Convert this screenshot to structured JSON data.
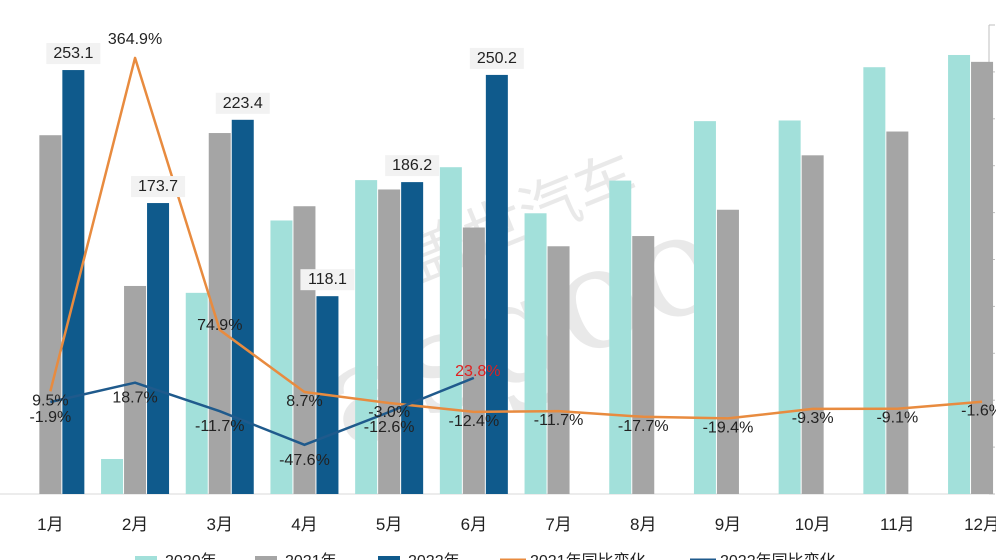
{
  "chart_data": {
    "type": "bar",
    "categories": [
      "1月",
      "2月",
      "3月",
      "4月",
      "5月",
      "6月",
      "7月",
      "8月",
      "9月",
      "10月",
      "11月",
      "12月"
    ],
    "series": [
      {
        "name": "2020年",
        "kind": "bar",
        "color": "#a2e0da",
        "values": [
          null,
          20.9,
          120.1,
          163.3,
          187.4,
          195.1,
          167.6,
          187.1,
          222.6,
          223.0,
          254.8,
          262.1
        ]
      },
      {
        "name": "2021年",
        "kind": "bar",
        "color": "#a5a5a5",
        "values": [
          214.2,
          124.2,
          215.5,
          171.8,
          181.8,
          159.1,
          147.9,
          154.0,
          169.7,
          202.2,
          216.4,
          258.0
        ]
      },
      {
        "name": "2022年",
        "kind": "bar",
        "color": "#0f5a8c",
        "values": [
          253.1,
          173.7,
          223.4,
          118.1,
          186.2,
          250.2,
          null,
          null,
          null,
          null,
          null,
          null
        ]
      },
      {
        "name": "2021年同比变化",
        "kind": "line",
        "color": "#e88b3f",
        "values": [
          9.5,
          364.9,
          74.9,
          8.7,
          -3.0,
          -12.4,
          -11.7,
          -17.7,
          -19.4,
          -9.3,
          -9.1,
          -1.6
        ],
        "labels": [
          "9.5%",
          "364.9%",
          "74.9%",
          "8.7%",
          "-3.0%",
          "-12.4%",
          "-11.7%",
          "-17.7%",
          "-19.4%",
          "-9.3%",
          "-9.1%",
          "-1.6%"
        ]
      },
      {
        "name": "2022年同比变化",
        "kind": "line",
        "color": "#1f5a8c",
        "values": [
          -1.9,
          18.7,
          -11.7,
          -47.6,
          -12.6,
          23.8,
          null,
          null,
          null,
          null,
          null,
          null
        ],
        "labels": [
          "-1.9%",
          "18.7%",
          "-11.7%",
          "-47.6%",
          "-12.6%",
          "23.8%",
          "",
          "",
          "",
          "",
          "",
          ""
        ]
      }
    ],
    "bar_value_labels": [
      "253.1",
      "173.7",
      "223.4",
      "118.1",
      "186.2",
      "250.2"
    ],
    "ylim_left": [
      0,
      280
    ],
    "ylim_right": [
      -100,
      400
    ],
    "legend_position": "bottom",
    "title": "",
    "xlabel": "",
    "ylabel": "",
    "watermark": "盖世汽车 Gasgoo"
  }
}
